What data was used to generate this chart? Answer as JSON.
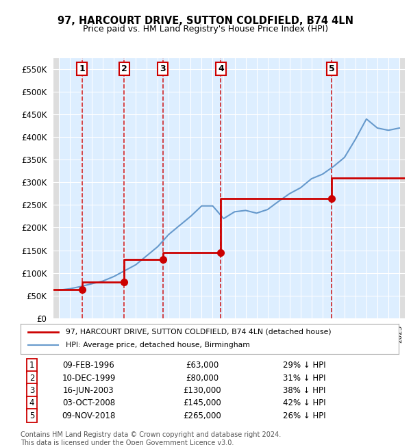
{
  "title": "97, HARCOURT DRIVE, SUTTON COLDFIELD, B74 4LN",
  "subtitle": "Price paid vs. HM Land Registry's House Price Index (HPI)",
  "ylabel_ticks": [
    "£0",
    "£50K",
    "£100K",
    "£150K",
    "£200K",
    "£250K",
    "£300K",
    "£350K",
    "£400K",
    "£450K",
    "£500K",
    "£550K"
  ],
  "ytick_values": [
    0,
    50000,
    100000,
    150000,
    200000,
    250000,
    300000,
    350000,
    400000,
    450000,
    500000,
    550000
  ],
  "ymax": 575000,
  "xmin": 1993.5,
  "xmax": 2025.5,
  "purchases": [
    {
      "num": 1,
      "date": "09-FEB-1996",
      "x": 1996.1,
      "price": 63000,
      "pct": "29%",
      "dir": "↓"
    },
    {
      "num": 2,
      "date": "10-DEC-1999",
      "x": 1999.95,
      "price": 80000,
      "pct": "31%",
      "dir": "↓"
    },
    {
      "num": 3,
      "date": "16-JUN-2003",
      "x": 2003.45,
      "price": 130000,
      "pct": "38%",
      "dir": "↓"
    },
    {
      "num": 4,
      "date": "03-OCT-2008",
      "x": 2008.75,
      "price": 145000,
      "pct": "42%",
      "dir": "↓"
    },
    {
      "num": 5,
      "date": "09-NOV-2018",
      "x": 2018.85,
      "price": 265000,
      "pct": "26%",
      "dir": "↓"
    }
  ],
  "hpi_years": [
    1994,
    1995,
    1996,
    1997,
    1998,
    1999,
    2000,
    2001,
    2002,
    2003,
    2004,
    2005,
    2006,
    2007,
    2008,
    2009,
    2010,
    2011,
    2012,
    2013,
    2014,
    2015,
    2016,
    2017,
    2018,
    2019,
    2020,
    2021,
    2022,
    2023,
    2024,
    2025
  ],
  "hpi_values": [
    62000,
    65000,
    70000,
    76000,
    82000,
    92000,
    105000,
    118000,
    138000,
    158000,
    185000,
    205000,
    225000,
    248000,
    248000,
    220000,
    235000,
    238000,
    232000,
    240000,
    258000,
    275000,
    288000,
    308000,
    318000,
    335000,
    355000,
    395000,
    440000,
    420000,
    415000,
    420000
  ],
  "price_line_x": [
    1993.5,
    1996.1,
    1996.1,
    1999.95,
    1999.95,
    2003.45,
    2003.45,
    2008.75,
    2008.75,
    2018.85,
    2018.85,
    2025.5
  ],
  "price_line_y": [
    63000,
    63000,
    80000,
    80000,
    130000,
    130000,
    145000,
    145000,
    265000,
    265000,
    310000,
    310000
  ],
  "red_color": "#cc0000",
  "blue_color": "#6699cc",
  "bg_color": "#ddeeff",
  "hatch_color": "#cccccc",
  "grid_color": "#ffffff",
  "footnote": "Contains HM Land Registry data © Crown copyright and database right 2024.\nThis data is licensed under the Open Government Licence v3.0.",
  "legend_line1": "97, HARCOURT DRIVE, SUTTON COLDFIELD, B74 4LN (detached house)",
  "legend_line2": "HPI: Average price, detached house, Birmingham"
}
